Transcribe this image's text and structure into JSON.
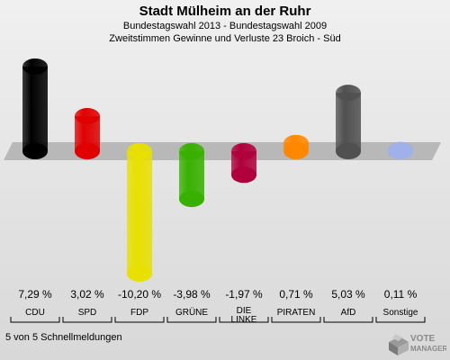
{
  "header": {
    "title": "Stadt Mülheim an der Ruhr",
    "subtitle_1": "Bundestagswahl 2013 - Bundestagswahl 2009",
    "subtitle_2": "Zweitstimmen Gewinne und Verluste 23 Broich - Süd"
  },
  "footer": {
    "text": "5 von 5 Schnellmeldungen"
  },
  "logo": {
    "text": "VOTE",
    "text_2": "MANAGER",
    "icon": "voting-box-icon",
    "color": "#999999"
  },
  "chart_data": {
    "type": "bar",
    "categories": [
      "CDU",
      "SPD",
      "FDP",
      "GRÜNE",
      "DIE LINKE",
      "PIRATEN",
      "AfD",
      "Sonstige"
    ],
    "category_lines": [
      [
        "CDU"
      ],
      [
        "SPD"
      ],
      [
        "FDP"
      ],
      [
        "GRÜNE"
      ],
      [
        "DIE",
        "LINKE"
      ],
      [
        "PIRATEN"
      ],
      [
        "AfD"
      ],
      [
        "Sonstige"
      ]
    ],
    "values": [
      7.29,
      3.02,
      -10.2,
      -3.98,
      -1.97,
      0.71,
      5.03,
      0.11
    ],
    "value_labels": [
      "7,29 %",
      "3,02 %",
      "-10,20 %",
      "-3,98 %",
      "-1,97 %",
      "0,71 %",
      "5,03 %",
      "0,11 %"
    ],
    "colors": [
      "#000000",
      "#e00000",
      "#e8e000",
      "#38b000",
      "#b0003c",
      "#ff8800",
      "#505050",
      "#a0b0e8"
    ],
    "ylim": [
      -10.2,
      7.29
    ],
    "xlabel": "",
    "ylabel": ""
  }
}
